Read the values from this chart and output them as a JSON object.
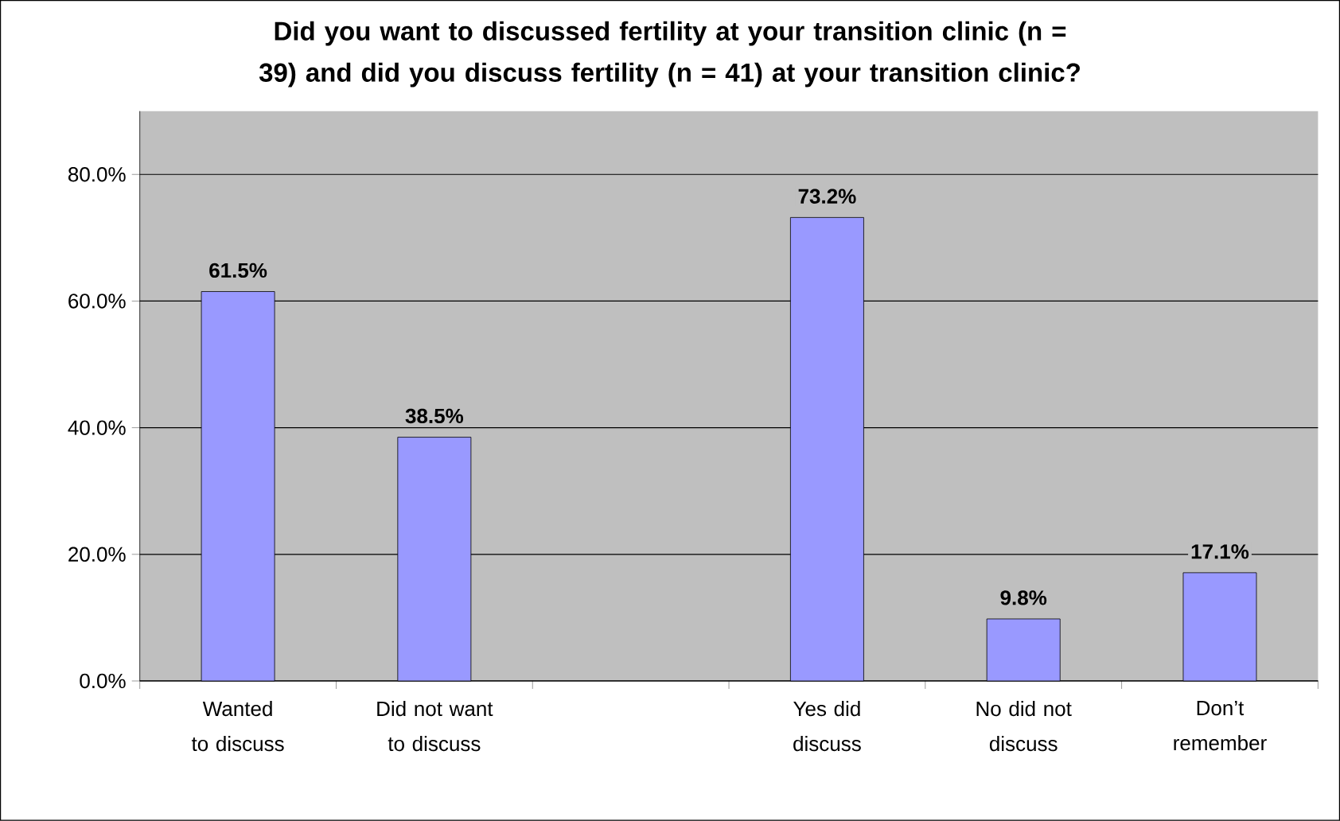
{
  "chart_data": {
    "type": "bar",
    "title": "Did you want to discussed fertility at your transition clinic (n = 39) and did you discuss fertility (n = 41) at your transition clinic?",
    "categories": [
      "Wanted to discuss",
      "Did not want to discuss",
      null,
      "Yes did discuss",
      "No did not discuss",
      "Don’t remember"
    ],
    "values": [
      61.5,
      38.5,
      null,
      73.2,
      9.8,
      17.1
    ],
    "value_labels": [
      "61.5%",
      "38.5%",
      null,
      "73.2%",
      "9.8%",
      "17.1%"
    ],
    "color": "#9999ff",
    "ylim": [
      0,
      90
    ],
    "yticks": [
      {
        "value": 0,
        "label": "0.0%"
      },
      {
        "value": 20,
        "label": "20.0%"
      },
      {
        "value": 40,
        "label": "40.0%"
      },
      {
        "value": 60,
        "label": "60.0%"
      },
      {
        "value": 80,
        "label": "80.0%"
      }
    ],
    "grid": "y"
  }
}
